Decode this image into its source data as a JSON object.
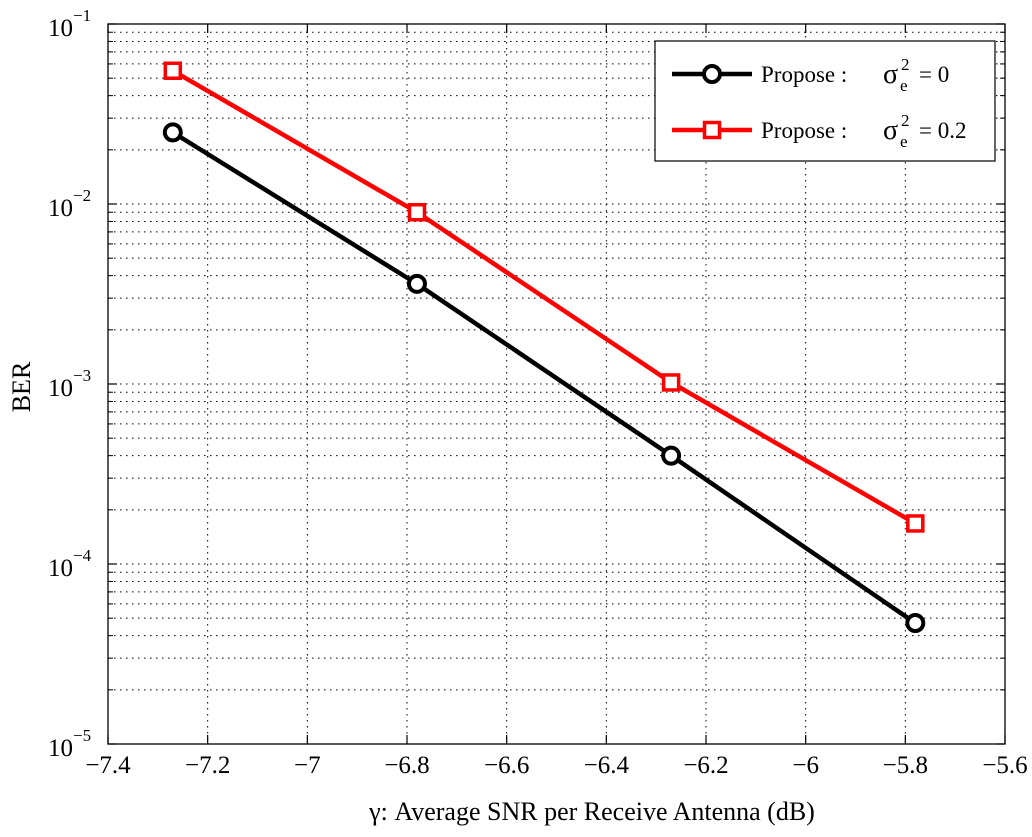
{
  "chart_data": {
    "type": "line",
    "title": "",
    "xlabel": "γ: Average SNR per Receive Antenna (dB)",
    "ylabel": "BER",
    "xlim": [
      -7.4,
      -5.6
    ],
    "ylim": [
      1e-05,
      0.1
    ],
    "yscale": "log",
    "grid": true,
    "legend_position": "top-right",
    "x_ticks": [
      -7.4,
      -7.2,
      -7,
      -6.8,
      -6.6,
      -6.4,
      -6.2,
      -6,
      -5.8,
      -5.6
    ],
    "x_tick_labels": [
      "−7.4",
      "−7.2",
      "−7",
      "−6.8",
      "−6.6",
      "−6.4",
      "−6.2",
      "−6",
      "−5.8",
      "−5.6"
    ],
    "y_ticks": [
      0.1,
      0.01,
      0.001,
      0.0001,
      1e-05
    ],
    "y_tick_base": "10",
    "y_tick_exponents": [
      "−1",
      "−2",
      "−3",
      "−4",
      "−5"
    ],
    "series": [
      {
        "name": "Propose :  σe² = 0",
        "legend_prefix": "Propose :",
        "legend_sigma": "σ",
        "legend_sub": "e",
        "legend_sup": "2",
        "legend_value": "= 0",
        "color": "#000000",
        "marker": "circle",
        "x": [
          -7.27,
          -6.78,
          -6.27,
          -5.78
        ],
        "y": [
          0.025,
          0.0036,
          0.0004,
          4.7e-05
        ]
      },
      {
        "name": "Propose :  σe² = 0.2",
        "legend_prefix": "Propose :",
        "legend_sigma": "σ",
        "legend_sub": "e",
        "legend_sup": "2",
        "legend_value": "= 0.2",
        "color": "#ff0000",
        "marker": "square",
        "x": [
          -7.27,
          -6.78,
          -6.27,
          -5.78
        ],
        "y": [
          0.055,
          0.009,
          0.00102,
          0.000168
        ]
      }
    ]
  }
}
